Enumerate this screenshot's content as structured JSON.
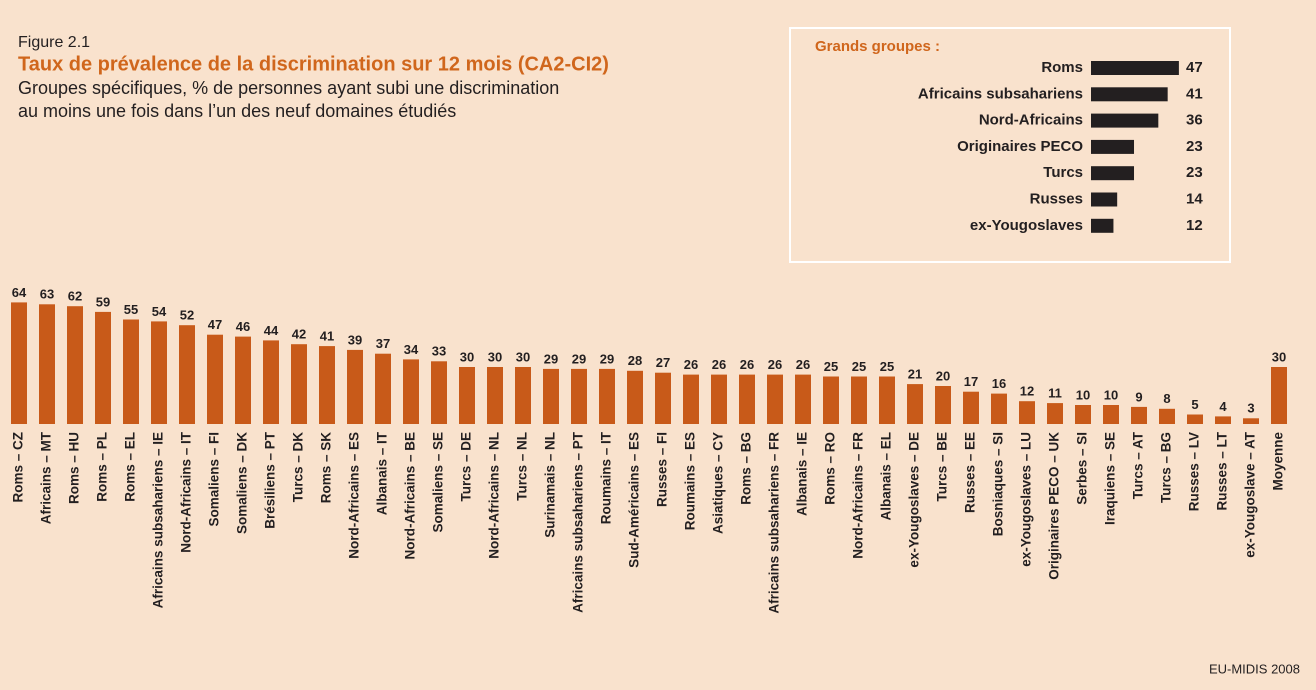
{
  "chart_data": [
    {
      "type": "bar",
      "label": "Figure 2.1",
      "title": "Taux de prévalence de la discrimination sur 12 mois (CA2-CI2)",
      "subtitle": [
        "Groupes spécifiques, % de personnes ayant subi une discrimination",
        "au moins une fois dans l’un des neuf domaines étudiés"
      ],
      "source": "EU-MIDIS 2008",
      "color": "#c85a19",
      "categories": [
        "Roms – CZ",
        "Africains – MT",
        "Roms – HU",
        "Roms – PL",
        "Roms – EL",
        "Africains subsahariens – IE",
        "Nord-Africains – IT",
        "Somaliens – FI",
        "Somaliens – DK",
        "Brésiliens – PT",
        "Turcs – DK",
        "Roms – SK",
        "Nord-Africains – ES",
        "Albanais – IT",
        "Nord-Africains – BE",
        "Somaliens – SE",
        "Turcs – DE",
        "Nord-Africains – NL",
        "Turcs – NL",
        "Surinamais – NL",
        "Africains subsahariens – PT",
        "Roumains – IT",
        "Sud-Américains – ES",
        "Russes – FI",
        "Roumains – ES",
        "Asiatiques – CY",
        "Roms – BG",
        "Africains subsahariens – FR",
        "Albanais – IE",
        "Roms – RO",
        "Nord-Africains – FR",
        "Albanais – EL",
        "ex-Yougoslaves – DE",
        "Turcs – BE",
        "Russes – EE",
        "Bosniaques – SI",
        "ex-Yougoslaves – LU",
        "Originaires PECO – UK",
        "Serbes – SI",
        "Iraquiens – SE",
        "Turcs – AT",
        "Turcs – BG",
        "Russes – LV",
        "Russes – LT",
        "ex-Yougoslave – AT",
        "Moyenne"
      ],
      "values": [
        64,
        63,
        62,
        59,
        55,
        54,
        52,
        47,
        46,
        44,
        42,
        41,
        39,
        37,
        34,
        33,
        30,
        30,
        30,
        29,
        29,
        29,
        28,
        27,
        26,
        26,
        26,
        26,
        26,
        25,
        25,
        25,
        21,
        20,
        17,
        16,
        12,
        11,
        10,
        10,
        9,
        8,
        5,
        4,
        3,
        30
      ]
    },
    {
      "type": "hbar",
      "title": "Grands groupes :",
      "color": "#231f20",
      "categories": [
        "Roms",
        "Africains subsahariens",
        "Nord-Africains",
        "Originaires PECO",
        "Turcs",
        "Russes",
        "ex-Yougoslaves"
      ],
      "values": [
        47,
        41,
        36,
        23,
        23,
        14,
        12
      ]
    }
  ]
}
